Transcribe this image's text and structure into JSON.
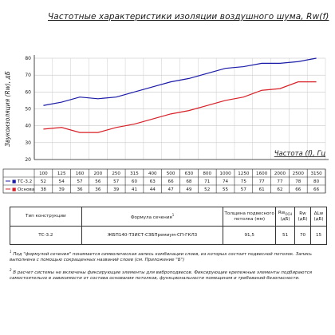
{
  "chart_data": {
    "type": "line",
    "title": "Частотные характеристики изоляции воздушного шума, Rw(f)",
    "xlabel": "Частота (f), Гц",
    "ylabel": "Звукоизоляция (Rw), дБ",
    "x_ticks": [
      "100",
      "125",
      "160",
      "200",
      "250",
      "315",
      "400",
      "500",
      "630",
      "800",
      "1000",
      "1250",
      "1600",
      "2000",
      "2500",
      "3150"
    ],
    "ylim": [
      20,
      80
    ],
    "y_ticks": [
      "20",
      "30",
      "40",
      "50",
      "60",
      "70",
      "80"
    ],
    "grid": true,
    "series": [
      {
        "name": "ТС-3.2",
        "color": "#1a1aa8",
        "marker": "■",
        "values": [
          52,
          54,
          57,
          56,
          57,
          60,
          63,
          66,
          68,
          71,
          74,
          75,
          77,
          77,
          78,
          80
        ]
      },
      {
        "name": "Основа",
        "color": "#d81f26",
        "marker": "■",
        "values": [
          38,
          39,
          36,
          36,
          39,
          41,
          44,
          47,
          49,
          52,
          55,
          57,
          61,
          62,
          66,
          66
        ]
      }
    ]
  },
  "table": {
    "headers": {
      "type": "Тип конструкции",
      "formula": "Формула сечения",
      "formula_sup": "1",
      "thickness": "Толщина подвесного потолка (мм)",
      "rwbase": "Rw",
      "rwbase_sub": "ОСН",
      "rwbase_unit": "(дБ)",
      "rw": "Rw",
      "rw_unit": "(дБ)",
      "dlw": "ΔLw",
      "dlw_unit": "(дБ)"
    },
    "row": {
      "type": "ТС-3.2",
      "formula": "ЖБП140-ТЗИСТ-СЗБПремиум-СП-ГКЛ3",
      "thickness": "91,5",
      "rwbase": "51",
      "rw": "70",
      "dlw": "15"
    }
  },
  "notes": [
    {
      "num": "1",
      "text": "Под \"формулой сечения\" понимается символическая запись комбинации слоев, из которых состоит подвесной потолок. Запись выполнена с помощью сокращенных названий слоев (см. Приложение \"Б\")"
    },
    {
      "num": "2",
      "text": "В расчет системы не включены фиксирующие элементы для виброподвесов. Фиксирующие крепежные элементы подбираются самостоятельно в зависимости от состава основания потолков, функциональности помещения и требований безопасности."
    }
  ]
}
